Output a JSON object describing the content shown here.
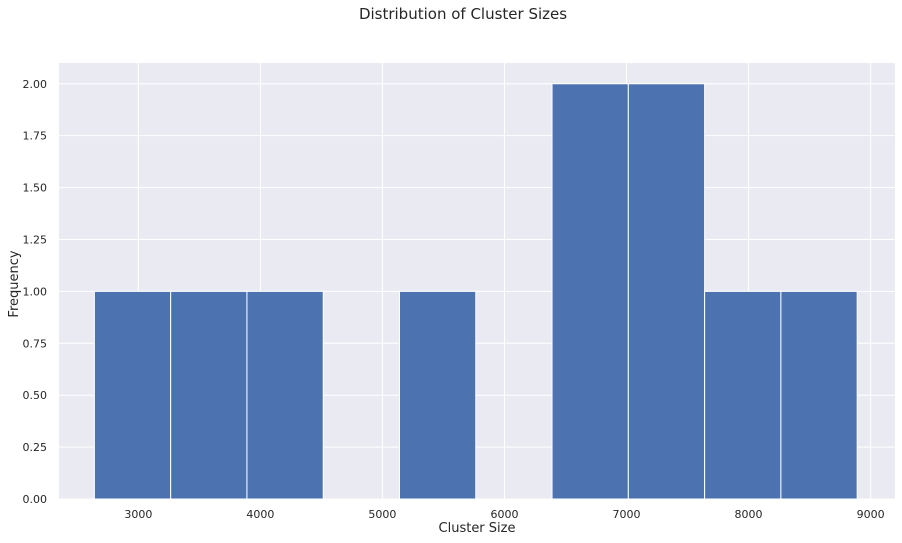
{
  "chart_data": {
    "type": "bar",
    "title": "Distribution of Cluster Sizes",
    "xlabel": "Cluster Size",
    "ylabel": "Frequency",
    "xlim": [
      2350,
      9200
    ],
    "ylim": [
      0,
      2.1
    ],
    "xticks": [
      3000,
      4000,
      5000,
      6000,
      7000,
      8000,
      9000
    ],
    "xtick_labels": [
      "3000",
      "4000",
      "5000",
      "6000",
      "7000",
      "8000",
      "9000"
    ],
    "yticks": [
      0,
      0.25,
      0.5,
      0.75,
      1.0,
      1.25,
      1.5,
      1.75,
      2.0
    ],
    "ytick_labels": [
      "0.00",
      "0.25",
      "0.50",
      "0.75",
      "1.00",
      "1.25",
      "1.50",
      "1.75",
      "2.00"
    ],
    "bin_edges": [
      2640,
      3265,
      3890,
      4515,
      5140,
      5765,
      6390,
      7015,
      7640,
      8265,
      8890
    ],
    "values": [
      1,
      1,
      1,
      0,
      1,
      0,
      2,
      2,
      1,
      1
    ],
    "grid": true,
    "colors": {
      "bar": "#4c72b0",
      "background": "#eaeaf2",
      "grid": "#ffffff"
    }
  }
}
